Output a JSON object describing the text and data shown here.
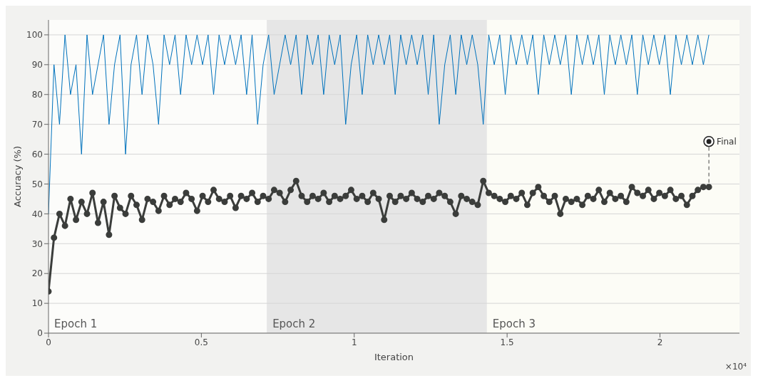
{
  "chart_data": {
    "type": "line",
    "xlabel": "Iteration",
    "ylabel": "Accuracy (%)",
    "x": [
      0,
      0.018,
      0.036,
      0.054,
      0.072,
      0.09,
      0.108,
      0.126,
      0.144,
      0.162,
      0.18,
      0.198,
      0.216,
      0.234,
      0.252,
      0.27,
      0.288,
      0.306,
      0.324,
      0.342,
      0.36,
      0.378,
      0.396,
      0.414,
      0.432,
      0.45,
      0.468,
      0.486,
      0.504,
      0.522,
      0.54,
      0.558,
      0.576,
      0.594,
      0.612,
      0.63,
      0.648,
      0.666,
      0.684,
      0.702,
      0.72,
      0.738,
      0.756,
      0.774,
      0.792,
      0.81,
      0.828,
      0.846,
      0.864,
      0.882,
      0.9,
      0.918,
      0.936,
      0.954,
      0.972,
      0.99,
      1.008,
      1.026,
      1.044,
      1.062,
      1.08,
      1.098,
      1.116,
      1.134,
      1.152,
      1.17,
      1.188,
      1.206,
      1.224,
      1.242,
      1.26,
      1.278,
      1.296,
      1.314,
      1.332,
      1.35,
      1.368,
      1.386,
      1.404,
      1.422,
      1.44,
      1.458,
      1.476,
      1.494,
      1.512,
      1.53,
      1.548,
      1.566,
      1.584,
      1.602,
      1.62,
      1.638,
      1.656,
      1.674,
      1.692,
      1.71,
      1.728,
      1.746,
      1.764,
      1.782,
      1.8,
      1.818,
      1.836,
      1.854,
      1.872,
      1.89,
      1.908,
      1.926,
      1.944,
      1.962,
      1.98,
      1.998,
      2.016,
      2.034,
      2.052,
      2.07,
      2.088,
      2.106,
      2.124,
      2.142,
      2.16
    ],
    "series": [
      {
        "color": "#0072bd",
        "marker": "none",
        "values": [
          40,
          90,
          70,
          100,
          80,
          90,
          60,
          100,
          80,
          90,
          100,
          70,
          90,
          100,
          60,
          90,
          100,
          80,
          100,
          90,
          70,
          100,
          90,
          100,
          80,
          100,
          90,
          100,
          90,
          100,
          80,
          100,
          90,
          100,
          90,
          100,
          80,
          100,
          70,
          90,
          100,
          80,
          90,
          100,
          90,
          100,
          80,
          100,
          90,
          100,
          80,
          100,
          90,
          100,
          70,
          90,
          100,
          80,
          100,
          90,
          100,
          90,
          100,
          80,
          100,
          90,
          100,
          90,
          100,
          80,
          100,
          70,
          90,
          100,
          80,
          100,
          90,
          100,
          90,
          70,
          100,
          90,
          100,
          80,
          100,
          90,
          100,
          90,
          100,
          80,
          100,
          90,
          100,
          90,
          100,
          80,
          100,
          90,
          100,
          90,
          100,
          80,
          100,
          90,
          100,
          90,
          100,
          80,
          100,
          90,
          100,
          90,
          100,
          80,
          100,
          90,
          100,
          90,
          100,
          90,
          100
        ]
      },
      {
        "color": "#3b3d3b",
        "marker": "circle",
        "values": [
          14,
          32,
          40,
          36,
          45,
          38,
          44,
          40,
          47,
          37,
          44,
          33,
          46,
          42,
          40,
          46,
          43,
          38,
          45,
          44,
          41,
          46,
          43,
          45,
          44,
          47,
          45,
          41,
          46,
          44,
          48,
          45,
          44,
          46,
          42,
          46,
          45,
          47,
          44,
          46,
          45,
          48,
          47,
          44,
          48,
          51,
          46,
          44,
          46,
          45,
          47,
          44,
          46,
          45,
          46,
          48,
          45,
          46,
          44,
          47,
          45,
          38,
          46,
          44,
          46,
          45,
          47,
          45,
          44,
          46,
          45,
          47,
          46,
          44,
          40,
          46,
          45,
          44,
          43,
          51,
          47,
          46,
          45,
          44,
          46,
          45,
          47,
          43,
          47,
          49,
          46,
          44,
          46,
          40,
          45,
          44,
          45,
          43,
          46,
          45,
          48,
          44,
          47,
          45,
          46,
          44,
          49,
          47,
          46,
          48,
          45,
          47,
          46,
          48,
          45,
          46,
          43,
          46,
          48,
          49,
          49
        ]
      }
    ],
    "xlim": [
      0,
      2.26
    ],
    "xticks": [
      0,
      0.5,
      1,
      1.5,
      2
    ],
    "ylim": [
      0,
      105
    ],
    "yticks": [
      0,
      10,
      20,
      30,
      40,
      50,
      60,
      70,
      80,
      90,
      100
    ],
    "grid": "y",
    "line_style": "solid",
    "bands": [
      {
        "axis": "x",
        "from": 0,
        "to": 0.714,
        "label": "Epoch 1",
        "color": "#fcfcfa"
      },
      {
        "axis": "x",
        "from": 0.714,
        "to": 1.434,
        "label": "Epoch 2",
        "color": "#e6e6e6"
      },
      {
        "axis": "x",
        "from": 1.434,
        "to": 2.26,
        "label": "Epoch 3",
        "color": "#fcfcf6"
      }
    ],
    "annotations": [
      {
        "text": "Final",
        "x": 2.16,
        "y": 49
      },
      "×10⁴"
    ]
  }
}
